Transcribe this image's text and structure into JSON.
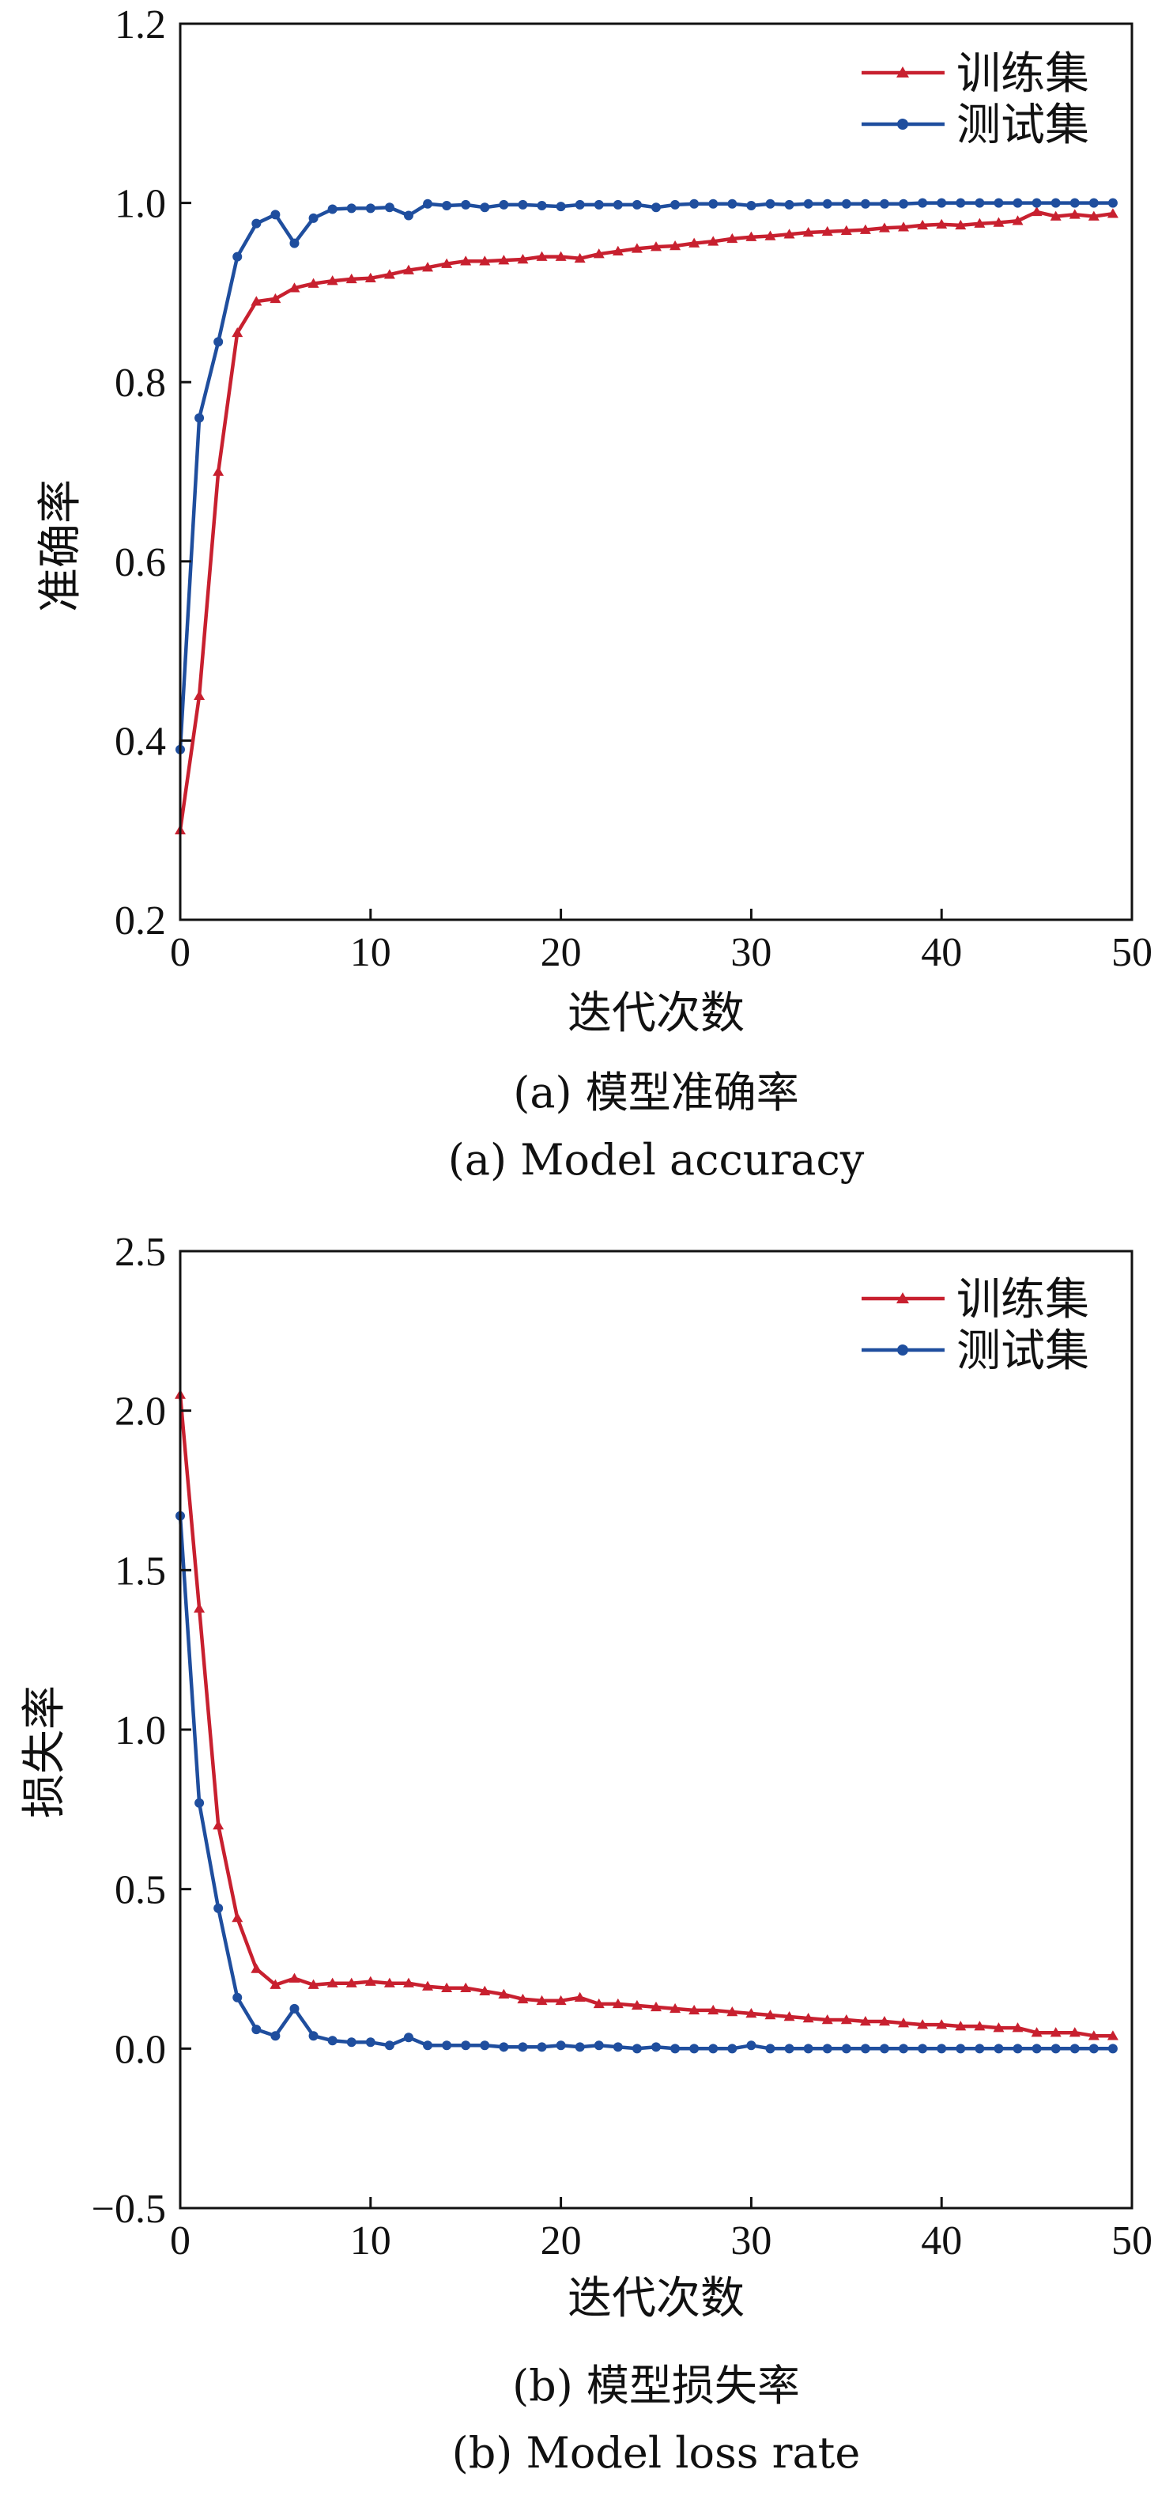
{
  "chart_data": [
    {
      "type": "line",
      "panel": "a",
      "xlabel": "迭代次数",
      "ylabel": "准确率",
      "xlim": [
        0,
        50
      ],
      "ylim": [
        0.2,
        1.2
      ],
      "xticks": [
        "0",
        "10",
        "20",
        "30",
        "40",
        "50"
      ],
      "yticks": [
        "0.2",
        "0.4",
        "0.6",
        "0.8",
        "1.0",
        "1.2"
      ],
      "legend_position": "top-right",
      "grid": false,
      "caption_cn": "(a) 模型准确率",
      "caption_en": "(a) Model accuracy",
      "series": [
        {
          "name": "训练集",
          "color": "#c8202f",
          "marker": "triangle",
          "x": [
            0,
            1,
            2,
            3,
            4,
            5,
            6,
            7,
            8,
            9,
            10,
            11,
            12,
            13,
            14,
            15,
            16,
            17,
            18,
            19,
            20,
            21,
            22,
            23,
            24,
            25,
            26,
            27,
            28,
            29,
            30,
            31,
            32,
            33,
            34,
            35,
            36,
            37,
            38,
            39,
            40,
            41,
            42,
            43,
            44,
            45,
            46,
            47,
            48,
            49
          ],
          "values": [
            0.3,
            0.45,
            0.7,
            0.855,
            0.89,
            0.893,
            0.905,
            0.91,
            0.913,
            0.915,
            0.916,
            0.92,
            0.925,
            0.928,
            0.932,
            0.935,
            0.935,
            0.936,
            0.937,
            0.94,
            0.94,
            0.938,
            0.943,
            0.946,
            0.949,
            0.951,
            0.952,
            0.955,
            0.957,
            0.96,
            0.962,
            0.963,
            0.965,
            0.967,
            0.968,
            0.969,
            0.97,
            0.972,
            0.973,
            0.975,
            0.976,
            0.975,
            0.977,
            0.978,
            0.98,
            0.99,
            0.985,
            0.987,
            0.985,
            0.988
          ]
        },
        {
          "name": "测试集",
          "color": "#1f4e9e",
          "marker": "circle",
          "x": [
            0,
            1,
            2,
            3,
            4,
            5,
            6,
            7,
            8,
            9,
            10,
            11,
            12,
            13,
            14,
            15,
            16,
            17,
            18,
            19,
            20,
            21,
            22,
            23,
            24,
            25,
            26,
            27,
            28,
            29,
            30,
            31,
            32,
            33,
            34,
            35,
            36,
            37,
            38,
            39,
            40,
            41,
            42,
            43,
            44,
            45,
            46,
            47,
            48,
            49
          ],
          "values": [
            0.39,
            0.76,
            0.845,
            0.94,
            0.977,
            0.987,
            0.955,
            0.983,
            0.993,
            0.994,
            0.994,
            0.995,
            0.986,
            0.999,
            0.997,
            0.998,
            0.995,
            0.998,
            0.998,
            0.997,
            0.996,
            0.998,
            0.998,
            0.998,
            0.998,
            0.995,
            0.998,
            0.999,
            0.999,
            0.999,
            0.997,
            0.999,
            0.998,
            0.999,
            0.999,
            0.999,
            0.999,
            0.999,
            0.999,
            1.0,
            1.0,
            1.0,
            1.0,
            1.0,
            1.0,
            1.0,
            1.0,
            1.0,
            1.0,
            1.0
          ]
        }
      ]
    },
    {
      "type": "line",
      "panel": "b",
      "xlabel": "迭代次数",
      "ylabel": "损失率",
      "xlim": [
        0,
        50
      ],
      "ylim": [
        -0.5,
        2.5
      ],
      "xticks": [
        "0",
        "10",
        "20",
        "30",
        "40",
        "50"
      ],
      "yticks": [
        "−0.5",
        "0.0",
        "0.5",
        "1.0",
        "1.5",
        "2.0",
        "2.5"
      ],
      "legend_position": "top-right",
      "grid": false,
      "caption_cn": "(b) 模型损失率",
      "caption_en": "(b) Model loss rate",
      "series": [
        {
          "name": "训练集",
          "color": "#c8202f",
          "marker": "triangle",
          "x": [
            0,
            1,
            2,
            3,
            4,
            5,
            6,
            7,
            8,
            9,
            10,
            11,
            12,
            13,
            14,
            15,
            16,
            17,
            18,
            19,
            20,
            21,
            22,
            23,
            24,
            25,
            26,
            27,
            28,
            29,
            30,
            31,
            32,
            33,
            34,
            35,
            36,
            37,
            38,
            39,
            40,
            41,
            42,
            43,
            44,
            45,
            46,
            47,
            48,
            49
          ],
          "values": [
            2.05,
            1.38,
            0.7,
            0.41,
            0.25,
            0.2,
            0.22,
            0.2,
            0.205,
            0.205,
            0.21,
            0.205,
            0.205,
            0.195,
            0.19,
            0.19,
            0.18,
            0.17,
            0.155,
            0.15,
            0.15,
            0.16,
            0.14,
            0.14,
            0.135,
            0.13,
            0.125,
            0.12,
            0.12,
            0.115,
            0.11,
            0.105,
            0.1,
            0.095,
            0.09,
            0.09,
            0.085,
            0.085,
            0.08,
            0.075,
            0.075,
            0.07,
            0.07,
            0.065,
            0.065,
            0.05,
            0.05,
            0.05,
            0.04,
            0.04
          ]
        },
        {
          "name": "测试集",
          "color": "#1f4e9e",
          "marker": "circle",
          "x": [
            0,
            1,
            2,
            3,
            4,
            5,
            6,
            7,
            8,
            9,
            10,
            11,
            12,
            13,
            14,
            15,
            16,
            17,
            18,
            19,
            20,
            21,
            22,
            23,
            24,
            25,
            26,
            27,
            28,
            29,
            30,
            31,
            32,
            33,
            34,
            35,
            36,
            37,
            38,
            39,
            40,
            41,
            42,
            43,
            44,
            45,
            46,
            47,
            48,
            49
          ],
          "values": [
            1.67,
            0.77,
            0.44,
            0.16,
            0.06,
            0.04,
            0.125,
            0.04,
            0.025,
            0.02,
            0.02,
            0.01,
            0.035,
            0.01,
            0.01,
            0.01,
            0.01,
            0.005,
            0.005,
            0.005,
            0.01,
            0.005,
            0.01,
            0.005,
            0.0,
            0.005,
            0.0,
            0.0,
            0.0,
            0.0,
            0.01,
            0.0,
            0.0,
            0.0,
            0.0,
            0.0,
            0.0,
            0.0,
            0.0,
            0.0,
            0.0,
            0.0,
            0.0,
            0.0,
            0.0,
            0.0,
            0.0,
            0.0,
            0.0,
            0.0
          ]
        }
      ]
    }
  ]
}
